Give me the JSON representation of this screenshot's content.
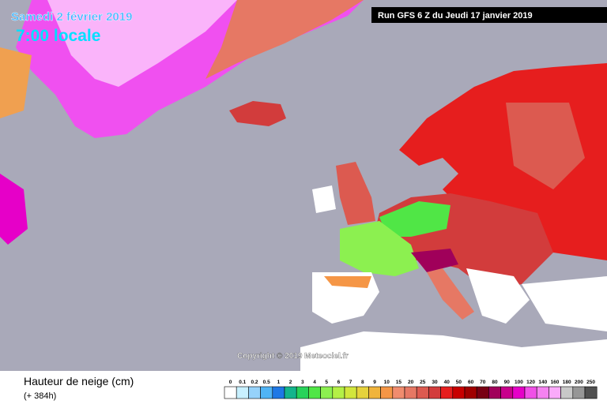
{
  "header": {
    "date": "Samedi 2 février 2019",
    "time": "7:00 locale",
    "run": "Run GFS 6 Z du Jeudi 17 janvier 2019"
  },
  "copyright": "Copyright © 2019 Meteociel.fr",
  "legend": {
    "title": "Hauteur de neige (cm)",
    "subtitle": "(+ 384h)",
    "levels": [
      {
        "label": "0",
        "color": "#ffffff"
      },
      {
        "label": "0.1",
        "color": "#c8f0ff"
      },
      {
        "label": "0.2",
        "color": "#96d2fa"
      },
      {
        "label": "0.5",
        "color": "#50b4f5"
      },
      {
        "label": "1",
        "color": "#1e78e6"
      },
      {
        "label": "2",
        "color": "#14b48c"
      },
      {
        "label": "3",
        "color": "#28d25a"
      },
      {
        "label": "4",
        "color": "#50e646"
      },
      {
        "label": "5",
        "color": "#8cf050"
      },
      {
        "label": "6",
        "color": "#b4f046"
      },
      {
        "label": "7",
        "color": "#d2e63c"
      },
      {
        "label": "8",
        "color": "#e6d23c"
      },
      {
        "label": "9",
        "color": "#f0b43c"
      },
      {
        "label": "10",
        "color": "#f59646"
      },
      {
        "label": "15",
        "color": "#f08c6e"
      },
      {
        "label": "20",
        "color": "#e67864"
      },
      {
        "label": "25",
        "color": "#dc5a50"
      },
      {
        "label": "30",
        "color": "#d23c3c"
      },
      {
        "label": "40",
        "color": "#e61e1e"
      },
      {
        "label": "50",
        "color": "#c80000"
      },
      {
        "label": "60",
        "color": "#a00000"
      },
      {
        "label": "70",
        "color": "#780014"
      },
      {
        "label": "80",
        "color": "#a0005a"
      },
      {
        "label": "90",
        "color": "#c8008c"
      },
      {
        "label": "100",
        "color": "#e600c8"
      },
      {
        "label": "120",
        "color": "#f050e6"
      },
      {
        "label": "140",
        "color": "#f582f0"
      },
      {
        "label": "160",
        "color": "#faaafa"
      },
      {
        "label": "180",
        "color": "#c8c8c8"
      },
      {
        "label": "200",
        "color": "#969696"
      },
      {
        "label": "250",
        "color": "#505050"
      }
    ]
  }
}
